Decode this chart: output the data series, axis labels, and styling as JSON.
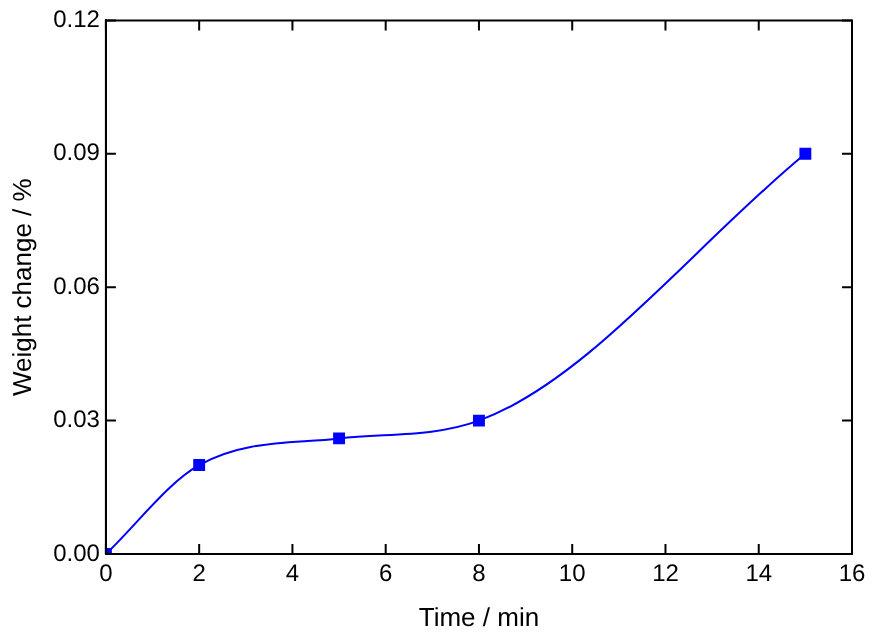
{
  "chart_data": {
    "type": "line",
    "xlabel": "Time / min",
    "ylabel": "Weight change / %",
    "x": [
      0,
      2,
      5,
      8,
      15
    ],
    "series": [
      {
        "color": "#0000ff",
        "values": [
          0,
          0.02,
          0.026,
          0.03,
          0.09
        ]
      }
    ],
    "xlim": [
      0,
      16
    ],
    "xticks": [
      0,
      2,
      4,
      6,
      8,
      10,
      12,
      14,
      16
    ],
    "ylim": [
      0,
      0.12
    ],
    "yticks": [
      {
        "value": 0,
        "label": "0.00"
      },
      {
        "value": 0.03,
        "label": "0.03"
      },
      {
        "value": 0.06,
        "label": "0.06"
      },
      {
        "value": 0.09,
        "label": "0.09"
      },
      {
        "value": 0.12,
        "label": "0.12"
      }
    ],
    "marker": "square",
    "line_style": "solid",
    "grid": false,
    "legend": false
  }
}
